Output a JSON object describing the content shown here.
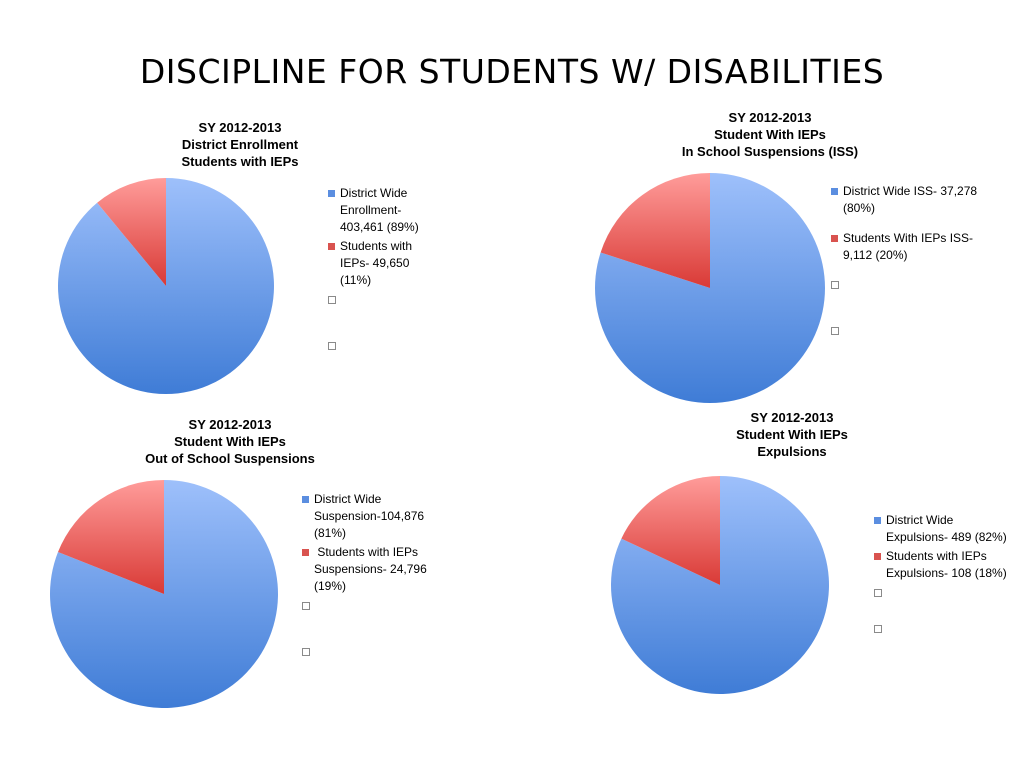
{
  "slide": {
    "title": "DISCIPLINE FOR STUDENTS W/ DISABILITIES"
  },
  "colors": {
    "blue_light": "#9ec0fb",
    "blue_dark": "#3f7cd6",
    "red_light": "#ff9c9a",
    "red_dark": "#d93a36"
  },
  "chart_data": [
    {
      "type": "pie",
      "title_lines": [
        "SY 2012-2013",
        "District Enrollment",
        "Students with IEPs"
      ],
      "slices": [
        {
          "value": 89,
          "color": "#5b8ee0",
          "legend_lines": [
            "District Wide",
            "Enrollment-",
            "403,461 (89%)"
          ]
        },
        {
          "value": 11,
          "color": "#d9534f",
          "legend_lines": [
            "Students with",
            "IEPs- 49,650",
            "(11%)"
          ]
        }
      ],
      "legend_placement": "right"
    },
    {
      "type": "pie",
      "title_lines": [
        "SY 2012-2013",
        "Student With IEPs",
        "In School Suspensions (ISS)"
      ],
      "slices": [
        {
          "value": 80,
          "color": "#5b8ee0",
          "legend_lines": [
            "District Wide ISS- 37,278",
            "(80%)"
          ]
        },
        {
          "value": 20,
          "color": "#d9534f",
          "legend_lines": [
            "Students With IEPs ISS-",
            "9,112 (20%)"
          ]
        }
      ],
      "legend_placement": "right"
    },
    {
      "type": "pie",
      "title_lines": [
        "SY 2012-2013",
        "Student With IEPs",
        "Out of School Suspensions"
      ],
      "slices": [
        {
          "value": 81,
          "color": "#5b8ee0",
          "legend_lines": [
            "District Wide",
            "Suspension-104,876",
            "(81%)"
          ]
        },
        {
          "value": 19,
          "color": "#d9534f",
          "legend_lines": [
            " Students with IEPs",
            "Suspensions- 24,796",
            "(19%)"
          ]
        }
      ],
      "legend_placement": "right"
    },
    {
      "type": "pie",
      "title_lines": [
        "SY 2012-2013",
        "Student With IEPs",
        "Expulsions"
      ],
      "slices": [
        {
          "value": 82,
          "color": "#5b8ee0",
          "legend_lines": [
            "District Wide",
            "Expulsions- 489 (82%)"
          ]
        },
        {
          "value": 18,
          "color": "#d9534f",
          "legend_lines": [
            "Students with IEPs",
            "Expulsions- 108 (18%)"
          ]
        }
      ],
      "legend_placement": "right"
    }
  ]
}
